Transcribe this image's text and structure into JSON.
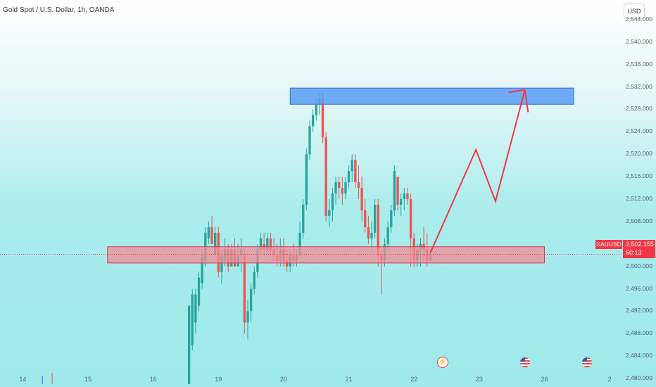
{
  "header": {
    "symbol": "Gold Spot / U.S. Dollar, 1h, OANDA",
    "currency": "USD"
  },
  "price_label": {
    "ticker": "XAUUSD",
    "price": "2,502.155",
    "countdown": "50:13"
  },
  "events": [
    {
      "icon": "lightning-icon"
    },
    {
      "icon": "us-flag-icon"
    },
    {
      "icon": "us-flag-icon"
    }
  ],
  "colors": {
    "up": "#26a69a",
    "down": "#ef5350",
    "resistance_zone": "#5b9cf5",
    "support_zone": "#f28b96",
    "projection": "#f23645"
  },
  "chart_data": {
    "type": "candlestick",
    "title": "",
    "y_ticks": [
      "2,544.000",
      "2,540.000",
      "2,536.000",
      "2,532.000",
      "2,528.000",
      "2,524.000",
      "2,520.000",
      "2,516.000",
      "2,512.000",
      "2,508.000",
      "2,504.000",
      "2,500.000",
      "2,496.000",
      "2,492.000",
      "2,488.000",
      "2,484.000",
      "2,480.000"
    ],
    "y_tick_values": [
      2544,
      2540,
      2536,
      2532,
      2528,
      2524,
      2520,
      2516,
      2512,
      2508,
      2504,
      2500,
      2496,
      2492,
      2488,
      2484,
      2480
    ],
    "x_ticks": [
      "14",
      "15",
      "16",
      "19",
      "20",
      "21",
      "22",
      "23",
      "26",
      "2"
    ],
    "x_tick_index": [
      0,
      10,
      20,
      30,
      40,
      50,
      60,
      70,
      80,
      90
    ],
    "ylim": [
      2478.5,
      2547.5
    ],
    "xlim": [
      -3.5,
      91.5
    ],
    "current_price": 2502.155,
    "ohlc": [
      [
        25.5,
        2493,
        2479,
        2479,
        2493
      ],
      [
        26.0,
        2496,
        2485,
        2486,
        2495
      ],
      [
        26.5,
        2496,
        2488,
        2490,
        2495
      ],
      [
        27.0,
        2499,
        2492,
        2493,
        2498
      ],
      [
        27.5,
        2503,
        2496,
        2497,
        2502
      ],
      [
        28.0,
        2507,
        2500,
        2501,
        2506
      ],
      [
        28.5,
        2508,
        2504,
        2505,
        2507
      ],
      [
        29.0,
        2509,
        2504,
        2507,
        2504
      ],
      [
        29.5,
        2507,
        2502,
        2502,
        2506
      ],
      [
        30.0,
        2507,
        2498,
        2506,
        2499
      ],
      [
        30.5,
        2503,
        2497,
        2499,
        2502
      ],
      [
        31.0,
        2505,
        2500,
        2501,
        2503
      ],
      [
        31.5,
        2504,
        2499,
        2503,
        2500
      ],
      [
        32.0,
        2504,
        2500,
        2500,
        2503
      ],
      [
        32.5,
        2505,
        2500,
        2503,
        2500
      ],
      [
        33.0,
        2504,
        2500,
        2500,
        2502
      ],
      [
        33.5,
        2505,
        2499,
        2502,
        2503
      ],
      [
        34.0,
        2503,
        2488,
        2502,
        2490
      ],
      [
        34.5,
        2494,
        2487,
        2490,
        2492
      ],
      [
        35.0,
        2497,
        2490,
        2492,
        2496
      ],
      [
        35.5,
        2500,
        2495,
        2496,
        2499
      ],
      [
        36.0,
        2504,
        2498,
        2499,
        2503
      ],
      [
        36.5,
        2506,
        2502,
        2503,
        2505
      ],
      [
        37.0,
        2506,
        2502,
        2504,
        2503
      ],
      [
        37.5,
        2506,
        2502,
        2503,
        2505
      ],
      [
        38.0,
        2506,
        2502,
        2505,
        2503
      ],
      [
        38.5,
        2505,
        2501,
        2503,
        2502
      ],
      [
        39.0,
        2504,
        2500,
        2502,
        2501
      ],
      [
        39.5,
        2505,
        2500,
        2501,
        2503
      ],
      [
        40.0,
        2505,
        2500,
        2503,
        2501
      ],
      [
        40.5,
        2503,
        2499,
        2501,
        2500
      ],
      [
        41.0,
        2503,
        2499,
        2500,
        2502
      ],
      [
        41.5,
        2504,
        2500,
        2502,
        2501
      ],
      [
        42.0,
        2503,
        2500,
        2501,
        2502
      ],
      [
        42.5,
        2508,
        2502,
        2502,
        2506
      ],
      [
        43.0,
        2512,
        2505,
        2506,
        2511
      ],
      [
        43.5,
        2521,
        2510,
        2511,
        2520
      ],
      [
        44.0,
        2526,
        2519,
        2520,
        2525
      ],
      [
        44.5,
        2528,
        2524,
        2525,
        2527
      ],
      [
        45.0,
        2530,
        2526,
        2527,
        2529
      ],
      [
        45.5,
        2531,
        2527,
        2529,
        2530
      ],
      [
        46.0,
        2531,
        2522,
        2530,
        2523
      ],
      [
        46.5,
        2524,
        2508,
        2523,
        2509
      ],
      [
        47.0,
        2512,
        2507,
        2509,
        2510
      ],
      [
        47.5,
        2514,
        2508,
        2510,
        2513
      ],
      [
        48.0,
        2516,
        2511,
        2513,
        2515
      ],
      [
        48.5,
        2516,
        2512,
        2515,
        2514
      ],
      [
        49.0,
        2516,
        2511,
        2514,
        2513
      ],
      [
        49.5,
        2516,
        2512,
        2513,
        2515
      ],
      [
        50.0,
        2518,
        2514,
        2515,
        2517
      ],
      [
        50.5,
        2520,
        2515,
        2517,
        2519
      ],
      [
        51.0,
        2520,
        2514,
        2519,
        2515
      ],
      [
        51.5,
        2518,
        2512,
        2515,
        2514
      ],
      [
        52.0,
        2516,
        2508,
        2514,
        2510
      ],
      [
        52.5,
        2512,
        2506,
        2510,
        2507
      ],
      [
        53.0,
        2509,
        2504,
        2507,
        2505
      ],
      [
        53.5,
        2508,
        2503,
        2505,
        2506
      ],
      [
        54.0,
        2512,
        2505,
        2506,
        2511
      ],
      [
        54.5,
        2512,
        2500,
        2511,
        2502
      ],
      [
        55.0,
        2503,
        2495,
        2502,
        2501
      ],
      [
        55.5,
        2505,
        2500,
        2501,
        2504
      ],
      [
        56.0,
        2508,
        2503,
        2504,
        2507
      ],
      [
        56.5,
        2511,
        2506,
        2507,
        2510
      ],
      [
        57.0,
        2518,
        2509,
        2510,
        2517
      ],
      [
        57.5,
        2516,
        2510,
        2516,
        2511
      ],
      [
        58.0,
        2513,
        2509,
        2511,
        2512
      ],
      [
        58.5,
        2514,
        2510,
        2512,
        2513
      ],
      [
        59.0,
        2514,
        2511,
        2513,
        2512
      ],
      [
        59.5,
        2513,
        2500,
        2512,
        2505
      ],
      [
        60.0,
        2506,
        2500,
        2505,
        2501
      ],
      [
        60.5,
        2504,
        2500,
        2501,
        2503
      ],
      [
        61.0,
        2505,
        2500,
        2503,
        2504
      ],
      [
        61.5,
        2507,
        2501,
        2504,
        2503
      ],
      [
        62.0,
        2506,
        2500,
        2503,
        2501
      ],
      [
        62.5,
        2503,
        2501,
        2501,
        2502.155
      ]
    ],
    "volume_ticks": [
      {
        "x": 3,
        "dir": "up"
      },
      {
        "x": 4.5,
        "dir": "down"
      }
    ],
    "resistance_zone": {
      "y_low": 2528.9,
      "y_high": 2531.8,
      "x_start": 41,
      "x_end": 84.5
    },
    "support_zone": {
      "y_low": 2500.6,
      "y_high": 2503.5,
      "x_start": 13,
      "x_end": 80
    },
    "projection_path": [
      [
        62.5,
        2502.4
      ],
      [
        69.5,
        2520.8
      ],
      [
        72.5,
        2511.6
      ],
      [
        77,
        2531.5
      ]
    ],
    "projection_arrowheads": [
      [
        74.5,
        2531
      ],
      [
        77.5,
        2527.5
      ]
    ]
  }
}
